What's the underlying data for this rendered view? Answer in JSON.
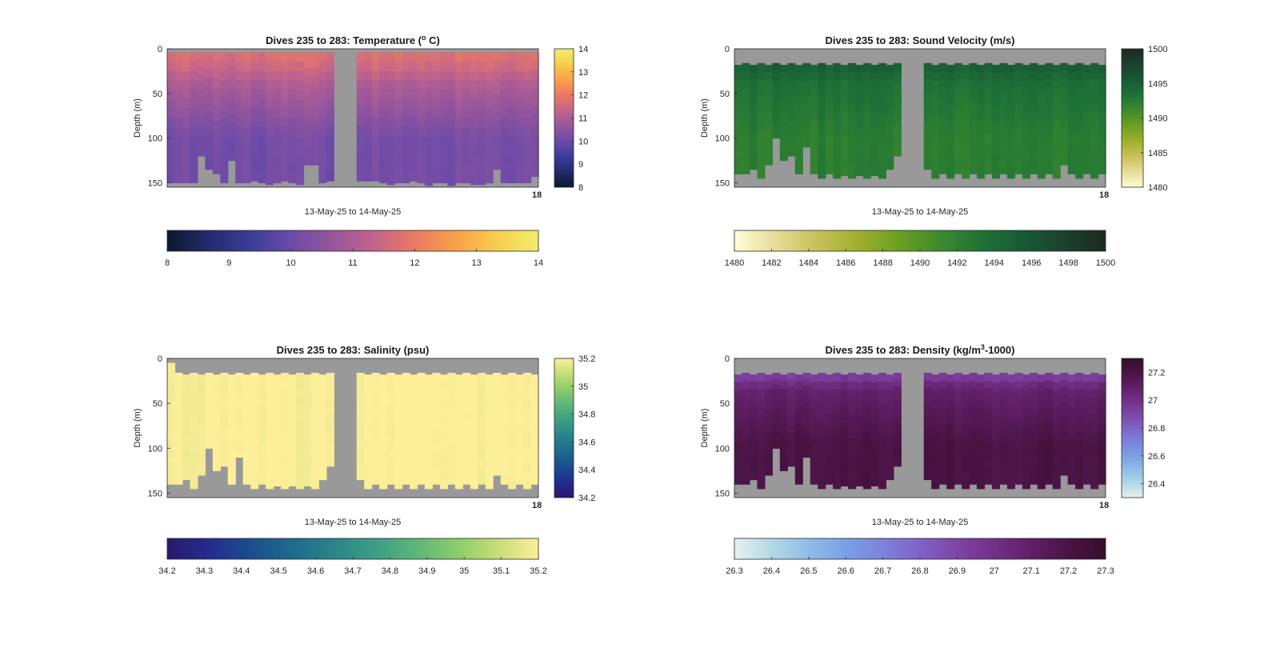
{
  "figure": {
    "type": "ocean-glider-section-panels",
    "background": "#ffffff"
  },
  "chart_data": [
    {
      "type": "heatmap",
      "title": {
        "main": "Dives 235 to 283: Temperature (",
        "sup": "o",
        "rest": " C)"
      },
      "xlabel": "13-May-25 to 14-May-25",
      "ylabel": "Depth (m)",
      "x_tick_label": "18",
      "y_ticks": [
        0,
        50,
        100,
        150
      ],
      "ylim": [
        0,
        155
      ],
      "dives": 49,
      "gap_dives": [
        22,
        23,
        24
      ],
      "top_gap_m": [
        4
      ],
      "bottom_m": [
        150,
        150,
        150,
        150,
        120,
        135,
        140,
        150,
        125,
        150,
        150,
        148,
        150,
        152,
        150,
        148,
        150,
        152,
        130,
        130,
        150,
        148,
        125,
        125,
        125,
        148,
        148,
        148,
        150,
        152,
        150,
        150,
        148,
        150,
        153,
        150,
        150,
        153,
        150,
        150,
        152,
        152,
        150,
        135,
        150,
        150,
        150,
        150,
        143
      ],
      "profile": {
        "surface": 11.7,
        "thermocline": 11.0,
        "deep": 10.15,
        "mid_depth_m": 40
      },
      "colorscale": {
        "name": "thermal",
        "range": [
          8,
          14
        ],
        "stops": [
          "#0b1930",
          "#212b6b",
          "#3b3d99",
          "#6a4aa8",
          "#96569c",
          "#c2648b",
          "#ea7a62",
          "#fba04a",
          "#f7ce4e",
          "#f1ee6b"
        ]
      },
      "colorbar_vertical_ticks": [
        8,
        9,
        10,
        11,
        12,
        13,
        14
      ],
      "colorbar_horizontal_ticks": [
        8,
        9,
        10,
        11,
        12,
        13,
        14
      ]
    },
    {
      "type": "heatmap",
      "title": {
        "main": "Dives 235 to 283: Sound Velocity (m/s)",
        "sup": "",
        "rest": ""
      },
      "xlabel": "13-May-25 to 14-May-25",
      "ylabel": "Depth (m)",
      "x_tick_label": "18",
      "y_ticks": [
        0,
        50,
        100,
        150
      ],
      "ylim": [
        0,
        155
      ],
      "dives": 49,
      "gap_dives": [
        22,
        23,
        24
      ],
      "top_gap_m": [
        18,
        16,
        18,
        16,
        18,
        16,
        18,
        16,
        18,
        16,
        18,
        16,
        18,
        16,
        18,
        16,
        18,
        16,
        18,
        16,
        18,
        16,
        18,
        16,
        18,
        16,
        18,
        16,
        18,
        16,
        18,
        16,
        18,
        16,
        18,
        16,
        18,
        16,
        18,
        16,
        18,
        16,
        18,
        16,
        18,
        16,
        18,
        16,
        18
      ],
      "bottom_m": [
        140,
        140,
        135,
        145,
        130,
        100,
        125,
        120,
        140,
        110,
        140,
        145,
        140,
        145,
        142,
        145,
        142,
        145,
        142,
        145,
        135,
        120,
        95,
        140,
        145,
        135,
        145,
        140,
        145,
        140,
        145,
        140,
        145,
        140,
        145,
        140,
        145,
        140,
        145,
        140,
        145,
        140,
        145,
        130,
        140,
        145,
        140,
        145,
        140
      ],
      "profile": {
        "surface": 1495.8,
        "thermocline": 1493.5,
        "deep": 1492.3,
        "mid_depth_m": 40
      },
      "colorscale": {
        "name": "speed",
        "range": [
          1480,
          1500
        ],
        "stops": [
          "#fefdd6",
          "#e6dc98",
          "#c9c05a",
          "#9fb02c",
          "#6b9f22",
          "#3c8a2e",
          "#1e7236",
          "#185a34",
          "#1b412c",
          "#1b2a1f"
        ]
      },
      "colorbar_vertical_ticks": [
        1480,
        1485,
        1490,
        1495,
        1500
      ],
      "colorbar_horizontal_ticks": [
        1480,
        1482,
        1484,
        1486,
        1488,
        1490,
        1492,
        1494,
        1496,
        1498,
        1500
      ]
    },
    {
      "type": "heatmap",
      "title": {
        "main": "Dives 235 to 283: Salinity (psu)",
        "sup": "",
        "rest": ""
      },
      "xlabel": "13-May-25 to 14-May-25",
      "ylabel": "Depth (m)",
      "x_tick_label": "18",
      "y_ticks": [
        0,
        50,
        100,
        150
      ],
      "ylim": [
        0,
        155
      ],
      "dives": 49,
      "gap_dives": [
        22,
        23,
        24
      ],
      "top_gap_m": [
        5,
        16,
        18,
        16,
        18,
        16,
        18,
        16,
        18,
        16,
        18,
        16,
        18,
        16,
        18,
        16,
        18,
        16,
        18,
        16,
        18,
        16,
        18,
        16,
        18,
        16,
        18,
        16,
        18,
        16,
        18,
        16,
        18,
        16,
        18,
        16,
        18,
        16,
        18,
        16,
        18,
        16,
        18,
        16,
        18,
        16,
        18,
        16,
        18
      ],
      "bottom_m": [
        140,
        140,
        135,
        145,
        130,
        100,
        125,
        120,
        140,
        110,
        140,
        145,
        140,
        145,
        142,
        145,
        142,
        145,
        142,
        145,
        135,
        120,
        95,
        140,
        145,
        135,
        145,
        140,
        145,
        140,
        145,
        140,
        145,
        140,
        145,
        140,
        145,
        140,
        145,
        140,
        145,
        140,
        145,
        130,
        140,
        145,
        140,
        145,
        140
      ],
      "profile": {
        "surface": 35.2,
        "thermocline": 35.2,
        "deep": 35.2,
        "mid_depth_m": 40
      },
      "colorscale": {
        "name": "haline",
        "range": [
          34.2,
          35.2
        ],
        "stops": [
          "#2a186c",
          "#232c8e",
          "#1b4d8e",
          "#1d6a8b",
          "#2a838a",
          "#3b9d86",
          "#5bb57a",
          "#8ccb6b",
          "#c4de77",
          "#fdee99"
        ]
      },
      "colorbar_vertical_ticks": [
        34.2,
        34.4,
        34.6,
        34.8,
        35,
        35.2
      ],
      "colorbar_horizontal_ticks": [
        34.2,
        34.3,
        34.4,
        34.5,
        34.6,
        34.7,
        34.8,
        34.9,
        35,
        35.1,
        35.2
      ]
    },
    {
      "type": "heatmap",
      "title": {
        "main": "Dives 235 to 283: Density (kg/m",
        "sup": "3",
        "rest": "-1000)"
      },
      "xlabel": "13-May-25 to 14-May-25",
      "ylabel": "Depth (m)",
      "x_tick_label": "18",
      "y_ticks": [
        0,
        50,
        100,
        150
      ],
      "ylim": [
        0,
        155
      ],
      "dives": 49,
      "gap_dives": [
        22,
        23,
        24
      ],
      "top_gap_m": [
        18,
        16,
        18,
        16,
        18,
        16,
        18,
        16,
        18,
        16,
        18,
        16,
        18,
        16,
        18,
        16,
        18,
        16,
        18,
        16,
        18,
        16,
        18,
        16,
        18,
        16,
        18,
        16,
        18,
        16,
        18,
        16,
        18,
        16,
        18,
        16,
        18,
        16,
        18,
        16,
        18,
        16,
        18,
        16,
        18,
        16,
        18,
        16,
        18
      ],
      "bottom_m": [
        140,
        140,
        135,
        145,
        130,
        100,
        125,
        120,
        140,
        110,
        140,
        145,
        140,
        145,
        142,
        145,
        142,
        145,
        142,
        145,
        135,
        120,
        95,
        140,
        145,
        135,
        145,
        140,
        145,
        140,
        145,
        140,
        145,
        140,
        145,
        140,
        145,
        140,
        145,
        140,
        145,
        140,
        145,
        130,
        140,
        145,
        140,
        145,
        140
      ],
      "profile": {
        "surface": 26.85,
        "thermocline": 27.08,
        "deep": 27.2,
        "mid_depth_m": 35
      },
      "colorscale": {
        "name": "dense",
        "range": [
          26.3,
          27.3
        ],
        "stops": [
          "#e6f1f1",
          "#b4d8e6",
          "#8fbde6",
          "#7aa0e4",
          "#7c82db",
          "#7f63c6",
          "#7c45a6",
          "#723087",
          "#601e65",
          "#491444",
          "#360d2b"
        ]
      },
      "colorbar_vertical_ticks": [
        26.4,
        26.6,
        26.8,
        27,
        27.2
      ],
      "colorbar_horizontal_ticks": [
        26.3,
        26.4,
        26.5,
        26.6,
        26.7,
        26.8,
        26.9,
        27,
        27.1,
        27.2,
        27.3
      ]
    }
  ]
}
